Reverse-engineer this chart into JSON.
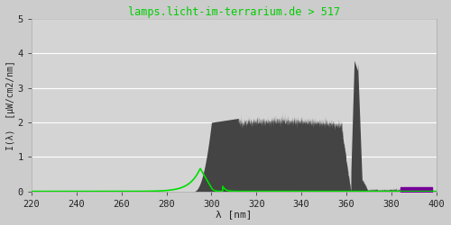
{
  "title": "lamps.licht-im-terrarium.de > 517",
  "xlabel": "λ [nm]",
  "ylabel": "I(λ)  [µW/cm2/nm]",
  "xlim": [
    220,
    400
  ],
  "ylim": [
    0.0,
    5.0
  ],
  "xticks": [
    220,
    240,
    260,
    280,
    300,
    320,
    340,
    360,
    380,
    400
  ],
  "yticks": [
    0.0,
    1.0,
    2.0,
    3.0,
    4.0,
    5.0
  ],
  "bg_color": "#cccccc",
  "plot_bg_color": "#d4d4d4",
  "grid_color": "#ffffff",
  "title_color": "#00cc00",
  "axis_color": "#222222",
  "font_family": "monospace",
  "green_curve_color": "#00dd00",
  "spectrum_gray_color": "#444444",
  "spectrum_purple_color": "#660077",
  "purple_bar_color": "#770099"
}
